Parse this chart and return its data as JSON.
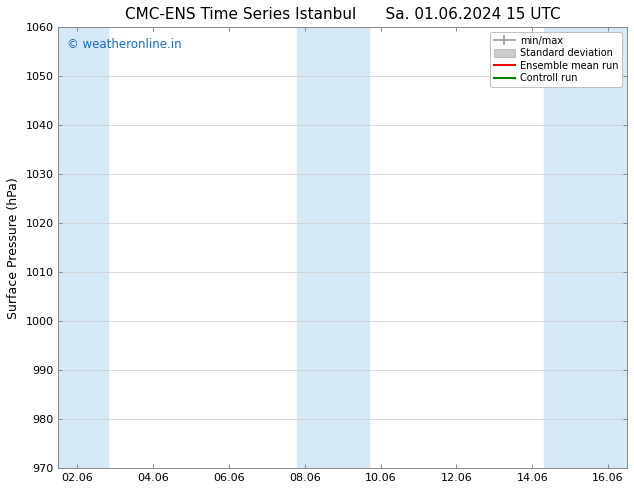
{
  "title": "CMC-ENS Time Series Istanbul",
  "title2": "Sa. 01.06.2024 15 UTC",
  "ylabel": "Surface Pressure (hPa)",
  "ylim": [
    970,
    1060
  ],
  "yticks": [
    970,
    980,
    990,
    1000,
    1010,
    1020,
    1030,
    1040,
    1050,
    1060
  ],
  "xlim_start": -0.5,
  "xlim_end": 14.5,
  "xtick_labels": [
    "02.06",
    "04.06",
    "06.06",
    "08.06",
    "10.06",
    "12.06",
    "14.06",
    "16.06"
  ],
  "xtick_positions": [
    0,
    2,
    4,
    6,
    8,
    10,
    12,
    14
  ],
  "shaded_bands": [
    {
      "x_start": -0.5,
      "x_end": 0.8
    },
    {
      "x_start": 5.8,
      "x_end": 6.7
    },
    {
      "x_start": 6.7,
      "x_end": 7.7
    },
    {
      "x_start": 12.3,
      "x_end": 13.3
    },
    {
      "x_start": 13.3,
      "x_end": 14.5
    }
  ],
  "band_color": "#d4e8f5",
  "watermark": "© weatheronline.in",
  "watermark_color": "#1a6bbf",
  "legend_entries": [
    {
      "label": "min/max",
      "color": "#999999",
      "type": "errorbar"
    },
    {
      "label": "Standard deviation",
      "color": "#cccccc",
      "type": "bar"
    },
    {
      "label": "Ensemble mean run",
      "color": "red",
      "type": "line"
    },
    {
      "label": "Controll run",
      "color": "green",
      "type": "line"
    }
  ],
  "bg_color": "#ffffff",
  "plot_bg_color": "#ffffff",
  "font_color": "#000000",
  "grid_color": "#cccccc",
  "title_fontsize": 11,
  "label_fontsize": 9,
  "tick_fontsize": 8
}
